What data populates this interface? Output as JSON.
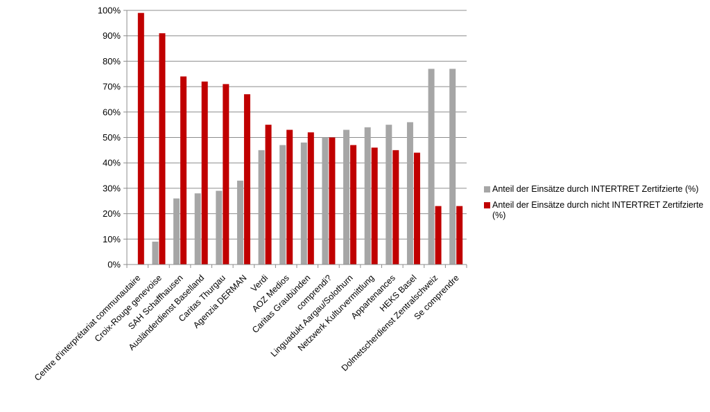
{
  "chart_data": {
    "type": "bar",
    "categories": [
      "Centre d'interprétariat communautaire",
      "Croix-Rouge genevoise",
      "SAH Schaffhausen",
      "Ausländerdienst Baselland",
      "Caritas Thurgau",
      "Agenzia DERMAN",
      "Verdi",
      "AOZ Medios",
      "Caritas Graubünden",
      "comprendi?",
      "Linguadukt Aargau/Solothurn",
      "Netzwerk Kulturvermittlung",
      "Appartenances",
      "HEKS Basel",
      "Dolmetscherdienst Zentralschweiz",
      "Se comprendre"
    ],
    "series": [
      {
        "name": "Anteil der Einsätze durch INTERTRET Zertifzierte (%)",
        "color": "#a6a6a6",
        "values": [
          0,
          9,
          26,
          28,
          29,
          33,
          45,
          47,
          48,
          50,
          53,
          54,
          55,
          56,
          77,
          77
        ]
      },
      {
        "name": "Anteil der Einsätze durch nicht INTERTRET Zertifzierte (%)",
        "color": "#c00000",
        "values": [
          99,
          91,
          74,
          72,
          71,
          67,
          55,
          53,
          52,
          50,
          47,
          46,
          45,
          44,
          23,
          23
        ]
      }
    ],
    "y_ticks": [
      "0%",
      "10%",
      "20%",
      "30%",
      "40%",
      "50%",
      "60%",
      "70%",
      "80%",
      "90%",
      "100%"
    ],
    "ylim": [
      0,
      100
    ],
    "grid": true,
    "legend_position": "right"
  }
}
